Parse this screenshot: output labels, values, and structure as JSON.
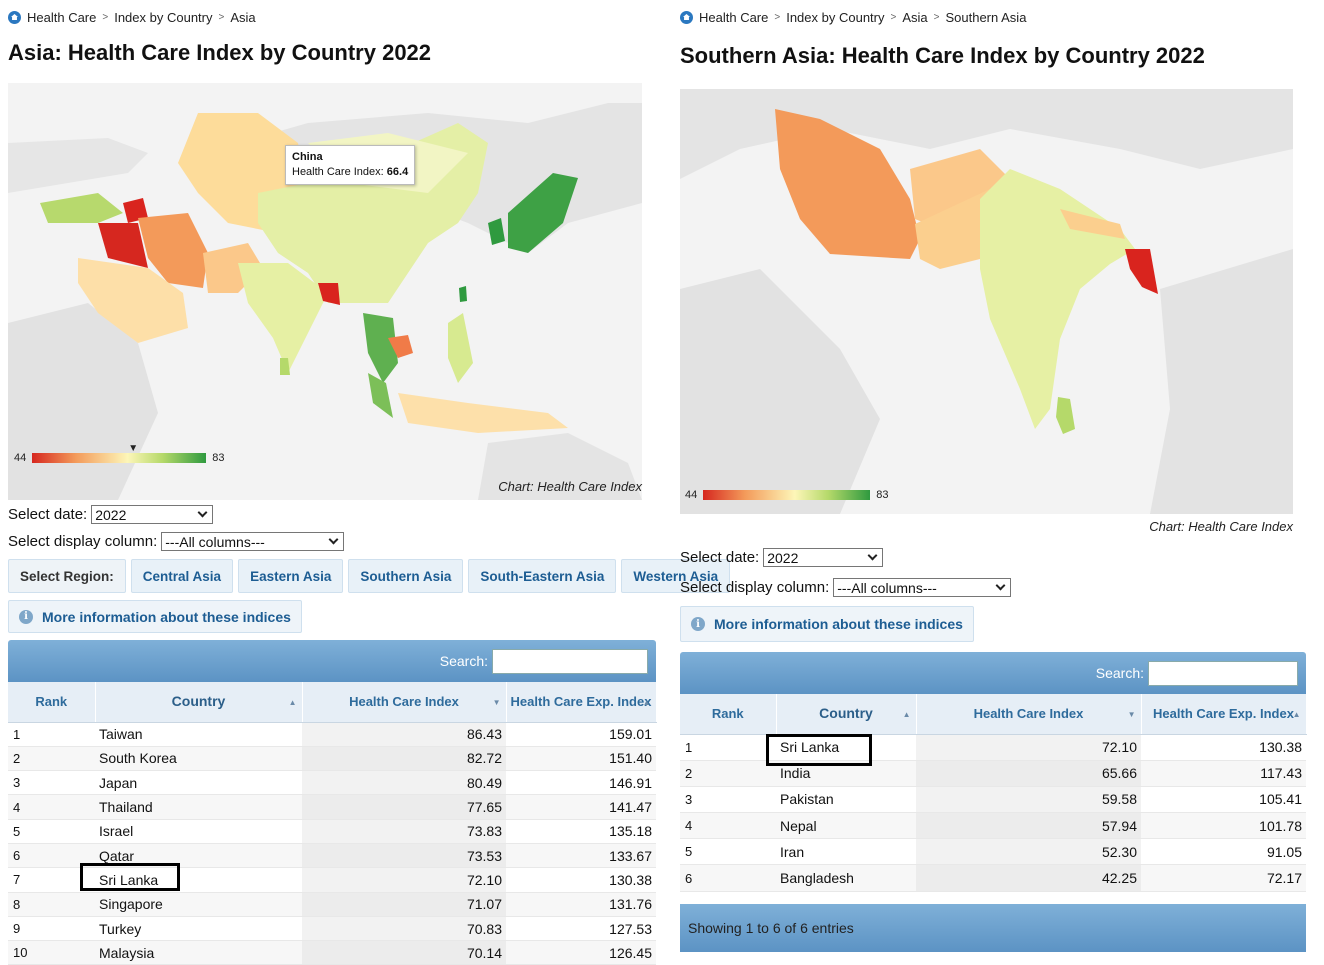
{
  "left": {
    "breadcrumb": [
      "Health Care",
      "Index by Country",
      "Asia"
    ],
    "title": "Asia: Health Care Index by Country 2022",
    "chart_caption": "Chart: Health Care Index",
    "legend": {
      "min": "44",
      "max": "83",
      "marker_value": 66.4
    },
    "tooltip": {
      "country": "China",
      "label": "Health Care Index:",
      "value": "66.4"
    },
    "select_date_label": "Select date:",
    "select_date_value": "2022",
    "select_column_label": "Select display column:",
    "select_column_value": "---All columns---",
    "region_buttons": [
      "Select Region:",
      "Central Asia",
      "Eastern Asia",
      "Southern Asia",
      "South-Eastern Asia",
      "Western Asia"
    ],
    "info_button": "More information about these indices",
    "search_label": "Search:",
    "columns": [
      "Rank",
      "Country",
      "Health Care Index",
      "Health Care Exp. Index"
    ],
    "rows": [
      [
        "1",
        "Taiwan",
        "86.43",
        "159.01"
      ],
      [
        "2",
        "South Korea",
        "82.72",
        "151.40"
      ],
      [
        "3",
        "Japan",
        "80.49",
        "146.91"
      ],
      [
        "4",
        "Thailand",
        "77.65",
        "141.47"
      ],
      [
        "5",
        "Israel",
        "73.83",
        "135.18"
      ],
      [
        "6",
        "Qatar",
        "73.53",
        "133.67"
      ],
      [
        "7",
        "Sri Lanka",
        "72.10",
        "130.38"
      ],
      [
        "8",
        "Singapore",
        "71.07",
        "131.76"
      ],
      [
        "9",
        "Turkey",
        "70.83",
        "127.53"
      ],
      [
        "10",
        "Malaysia",
        "70.14",
        "126.45"
      ]
    ]
  },
  "right": {
    "breadcrumb": [
      "Health Care",
      "Index by Country",
      "Asia",
      "Southern Asia"
    ],
    "title": "Southern Asia: Health Care Index by Country 2022",
    "chart_caption": "Chart: Health Care Index",
    "legend": {
      "min": "44",
      "max": "83"
    },
    "select_date_label": "Select date:",
    "select_date_value": "2022",
    "select_column_label": "Select display column:",
    "select_column_value": "---All columns---",
    "info_button": "More information about these indices",
    "search_label": "Search:",
    "columns": [
      "Rank",
      "Country",
      "Health Care Index",
      "Health Care Exp. Index"
    ],
    "rows": [
      [
        "1",
        "Sri Lanka",
        "72.10",
        "130.38"
      ],
      [
        "2",
        "India",
        "65.66",
        "117.43"
      ],
      [
        "3",
        "Pakistan",
        "59.58",
        "105.41"
      ],
      [
        "4",
        "Nepal",
        "57.94",
        "101.78"
      ],
      [
        "5",
        "Iran",
        "52.30",
        "91.05"
      ],
      [
        "6",
        "Bangladesh",
        "42.25",
        "72.17"
      ]
    ],
    "footer": "Showing 1 to 6 of 6 entries"
  },
  "colors": {
    "accent": "#1d5d93",
    "header_bar": "#6aa0cc",
    "low": "#d6271f",
    "high": "#2f9a3f"
  }
}
